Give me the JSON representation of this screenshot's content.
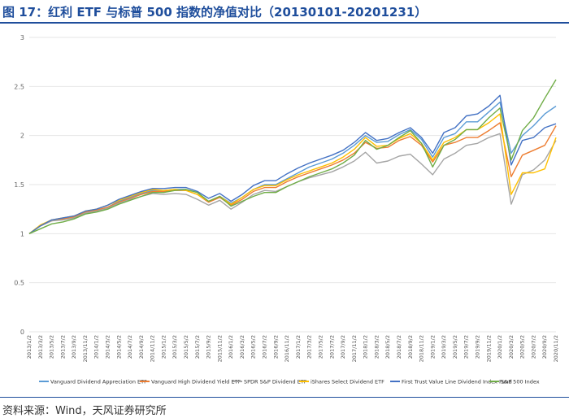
{
  "header": {
    "title": "图 17：红利 ETF 与标普 500 指数的净值对比（20130101-20201231）"
  },
  "footer": {
    "source": "资料来源：Wind，天风证券研究所"
  },
  "colors": {
    "title": "#1f4e9c",
    "grid": "#e6e6e6"
  },
  "chart_data": {
    "type": "line",
    "title": "",
    "xlabel": "",
    "ylabel": "",
    "ylim": [
      0,
      3
    ],
    "yticks": [
      "0",
      "0.5",
      "1",
      "1.5",
      "2",
      "2.5",
      "3"
    ],
    "grid": true,
    "legend_position": "bottom",
    "x": [
      "2013/1/2",
      "2013/3/2",
      "2013/5/2",
      "2013/7/2",
      "2013/9/2",
      "2013/11/2",
      "2014/1/2",
      "2014/3/2",
      "2014/5/2",
      "2014/7/2",
      "2014/9/2",
      "2014/11/2",
      "2015/1/2",
      "2015/3/2",
      "2015/5/2",
      "2015/7/2",
      "2015/9/2",
      "2015/11/2",
      "2016/1/2",
      "2016/3/2",
      "2016/5/2",
      "2016/7/2",
      "2016/9/2",
      "2016/11/2",
      "2017/1/2",
      "2017/3/2",
      "2017/5/2",
      "2017/7/2",
      "2017/9/2",
      "2017/11/2",
      "2018/1/2",
      "2018/3/2",
      "2018/5/2",
      "2018/7/2",
      "2018/9/2",
      "2018/11/2",
      "2019/1/2",
      "2019/3/2",
      "2019/5/2",
      "2019/7/2",
      "2019/9/2",
      "2019/11/2",
      "2020/1/2",
      "2020/3/2",
      "2020/5/2",
      "2020/7/2",
      "2020/9/2",
      "2020/11/2"
    ],
    "series": [
      {
        "name": "Vanguard Dividend Appreciation ETF",
        "color": "#5b9bd5",
        "values": [
          1.0,
          1.08,
          1.14,
          1.15,
          1.17,
          1.22,
          1.24,
          1.27,
          1.33,
          1.37,
          1.41,
          1.44,
          1.44,
          1.45,
          1.45,
          1.42,
          1.33,
          1.38,
          1.31,
          1.37,
          1.45,
          1.5,
          1.5,
          1.56,
          1.62,
          1.68,
          1.72,
          1.76,
          1.82,
          1.9,
          2.0,
          1.93,
          1.94,
          2.01,
          2.06,
          1.96,
          1.78,
          1.98,
          2.02,
          2.14,
          2.14,
          2.24,
          2.34,
          1.82,
          2.0,
          2.1,
          2.22,
          2.3
        ]
      },
      {
        "name": "Vanguard High Dividend Yield ETF",
        "color": "#ed7d31",
        "values": [
          1.0,
          1.08,
          1.13,
          1.15,
          1.17,
          1.22,
          1.24,
          1.27,
          1.32,
          1.36,
          1.4,
          1.43,
          1.43,
          1.44,
          1.44,
          1.4,
          1.32,
          1.37,
          1.29,
          1.35,
          1.43,
          1.47,
          1.47,
          1.53,
          1.58,
          1.62,
          1.66,
          1.7,
          1.75,
          1.82,
          1.93,
          1.87,
          1.88,
          1.95,
          1.99,
          1.9,
          1.73,
          1.9,
          1.93,
          1.98,
          1.98,
          2.05,
          2.13,
          1.58,
          1.8,
          1.85,
          1.9,
          2.1
        ]
      },
      {
        "name": "SPDR S&P Dividend ETF",
        "color": "#a5a5a5",
        "values": [
          1.0,
          1.08,
          1.13,
          1.14,
          1.16,
          1.21,
          1.23,
          1.26,
          1.31,
          1.35,
          1.38,
          1.41,
          1.4,
          1.41,
          1.4,
          1.35,
          1.29,
          1.34,
          1.25,
          1.32,
          1.4,
          1.44,
          1.43,
          1.48,
          1.53,
          1.57,
          1.6,
          1.63,
          1.68,
          1.74,
          1.83,
          1.72,
          1.74,
          1.79,
          1.81,
          1.71,
          1.6,
          1.76,
          1.82,
          1.9,
          1.92,
          1.98,
          2.02,
          1.3,
          1.6,
          1.65,
          1.75,
          1.95
        ]
      },
      {
        "name": "iShares Select Dividend ETF",
        "color": "#ffc000",
        "values": [
          1.0,
          1.09,
          1.14,
          1.16,
          1.18,
          1.23,
          1.25,
          1.29,
          1.34,
          1.38,
          1.42,
          1.45,
          1.44,
          1.45,
          1.44,
          1.4,
          1.33,
          1.38,
          1.3,
          1.37,
          1.45,
          1.49,
          1.49,
          1.55,
          1.6,
          1.64,
          1.68,
          1.72,
          1.78,
          1.86,
          1.98,
          1.89,
          1.9,
          1.97,
          2.02,
          1.92,
          1.75,
          1.93,
          1.98,
          2.06,
          2.06,
          2.13,
          2.22,
          1.4,
          1.62,
          1.62,
          1.66,
          1.98
        ]
      },
      {
        "name": "First Trust Value Line Dividend Index Fund",
        "color": "#4472c4",
        "values": [
          1.0,
          1.08,
          1.14,
          1.16,
          1.18,
          1.23,
          1.25,
          1.29,
          1.35,
          1.39,
          1.43,
          1.46,
          1.46,
          1.47,
          1.47,
          1.43,
          1.36,
          1.41,
          1.33,
          1.4,
          1.49,
          1.54,
          1.54,
          1.61,
          1.67,
          1.72,
          1.76,
          1.8,
          1.85,
          1.93,
          2.03,
          1.95,
          1.97,
          2.03,
          2.08,
          1.98,
          1.82,
          2.03,
          2.08,
          2.2,
          2.22,
          2.3,
          2.41,
          1.7,
          1.95,
          1.98,
          2.08,
          2.12
        ]
      },
      {
        "name": "S&P 500 Index",
        "color": "#70ad47",
        "values": [
          1.0,
          1.05,
          1.1,
          1.12,
          1.15,
          1.2,
          1.22,
          1.25,
          1.3,
          1.34,
          1.38,
          1.42,
          1.42,
          1.44,
          1.45,
          1.42,
          1.33,
          1.38,
          1.28,
          1.33,
          1.38,
          1.42,
          1.42,
          1.48,
          1.53,
          1.58,
          1.62,
          1.66,
          1.72,
          1.8,
          1.95,
          1.86,
          1.9,
          1.98,
          2.05,
          1.92,
          1.68,
          1.9,
          1.96,
          2.06,
          2.06,
          2.18,
          2.28,
          1.75,
          2.05,
          2.18,
          2.38,
          2.57
        ]
      }
    ]
  }
}
